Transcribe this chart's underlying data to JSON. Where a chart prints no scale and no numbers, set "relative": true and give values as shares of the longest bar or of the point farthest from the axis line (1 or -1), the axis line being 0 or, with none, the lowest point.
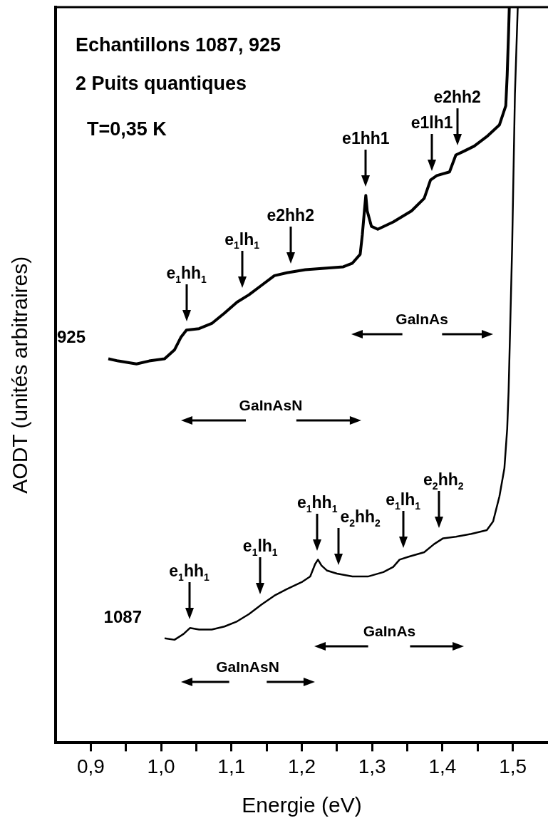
{
  "chart_data": {
    "type": "line",
    "relative": true,
    "xlabel": "Energie (eV)",
    "ylabel": "AODT (unités arbitraires)",
    "legend": false,
    "grid": false,
    "marker": "none",
    "line_style": "solid",
    "xlim": [
      0.85,
      1.55
    ],
    "xticks": [
      {
        "value": 0.9,
        "label": "0,9"
      },
      {
        "value": 0.95,
        "label": null
      },
      {
        "value": 1.0,
        "label": "1,0"
      },
      {
        "value": 1.05,
        "label": null
      },
      {
        "value": 1.1,
        "label": "1,1"
      },
      {
        "value": 1.15,
        "label": null
      },
      {
        "value": 1.2,
        "label": "1,2"
      },
      {
        "value": 1.25,
        "label": null
      },
      {
        "value": 1.3,
        "label": "1,3"
      },
      {
        "value": 1.35,
        "label": null
      },
      {
        "value": 1.4,
        "label": "1,4"
      },
      {
        "value": 1.45,
        "label": null
      },
      {
        "value": 1.5,
        "label": "1,5"
      }
    ],
    "series": [
      {
        "name": "925",
        "color": "#000000",
        "x": [
          0.925,
          0.939,
          0.965,
          0.983,
          1.005,
          1.019,
          1.028,
          1.036,
          1.054,
          1.072,
          1.09,
          1.108,
          1.125,
          1.143,
          1.161,
          1.179,
          1.205,
          1.232,
          1.259,
          1.272,
          1.283,
          1.286,
          1.289,
          1.291,
          1.293,
          1.299,
          1.308,
          1.33,
          1.356,
          1.374,
          1.383,
          1.392,
          1.41,
          1.419,
          1.428,
          1.445,
          1.463,
          1.481,
          1.49,
          1.492,
          1.494,
          1.495
        ],
        "values": [
          0.522,
          0.519,
          0.515,
          0.519,
          0.522,
          0.534,
          0.551,
          0.561,
          0.563,
          0.57,
          0.584,
          0.599,
          0.609,
          0.622,
          0.635,
          0.639,
          0.643,
          0.645,
          0.647,
          0.652,
          0.664,
          0.69,
          0.723,
          0.744,
          0.723,
          0.702,
          0.698,
          0.708,
          0.723,
          0.74,
          0.765,
          0.771,
          0.776,
          0.799,
          0.803,
          0.811,
          0.824,
          0.84,
          0.866,
          0.908,
          0.967,
          1.0
        ]
      },
      {
        "name": "1087",
        "color": "#000000",
        "x": [
          1.005,
          1.019,
          1.032,
          1.041,
          1.054,
          1.072,
          1.09,
          1.108,
          1.125,
          1.143,
          1.161,
          1.179,
          1.201,
          1.212,
          1.219,
          1.223,
          1.228,
          1.236,
          1.25,
          1.272,
          1.294,
          1.316,
          1.33,
          1.339,
          1.352,
          1.374,
          1.388,
          1.401,
          1.419,
          1.441,
          1.463,
          1.472,
          1.481,
          1.488,
          1.492,
          1.494,
          1.499,
          1.503,
          1.507
        ],
        "values": [
          0.142,
          0.14,
          0.148,
          0.156,
          0.154,
          0.154,
          0.158,
          0.165,
          0.175,
          0.188,
          0.2,
          0.209,
          0.219,
          0.226,
          0.243,
          0.249,
          0.241,
          0.234,
          0.23,
          0.226,
          0.226,
          0.232,
          0.239,
          0.249,
          0.253,
          0.259,
          0.27,
          0.278,
          0.28,
          0.284,
          0.289,
          0.301,
          0.335,
          0.373,
          0.427,
          0.478,
          0.673,
          0.882,
          1.0
        ]
      }
    ],
    "annotations": [
      "Echantillons 1087, 925",
      "2 Puits quantiques",
      "T=0,35 K",
      "GaInAs",
      "GaInAsN",
      "GaInAs",
      "GaInAsN",
      {
        "text": "e$_{1}$hh$_{1}$",
        "x": 1.036,
        "y": 0.561
      },
      {
        "text": "e$_{1}$lh$_{1}$",
        "x": 1.115,
        "y": 0.607
      },
      {
        "text": "e2hh2",
        "x": 1.184,
        "y": 0.64
      },
      {
        "text": "e1hh1",
        "x": 1.291,
        "y": 0.744
      },
      {
        "text": "e1lh1",
        "x": 1.385,
        "y": 0.766
      },
      {
        "text": "e2hh2",
        "x": 1.421,
        "y": 0.8
      },
      {
        "text": "e$_{1}$hh$_{1}$",
        "x": 1.04,
        "y": 0.156
      },
      {
        "text": "e$_{1}$lh$_{1}$",
        "x": 1.141,
        "y": 0.19
      },
      {
        "text": "e$_{1}$hh$_{1}$",
        "x": 1.222,
        "y": 0.249
      },
      {
        "text": "e$_{2}$hh$_{2}$",
        "x": 1.252,
        "y": 0.23
      },
      {
        "text": "e$_{1}$lh$_{1}$",
        "x": 1.344,
        "y": 0.253
      },
      {
        "text": "e$_{2}$hh$_{2}$",
        "x": 1.395,
        "y": 0.28
      }
    ]
  }
}
